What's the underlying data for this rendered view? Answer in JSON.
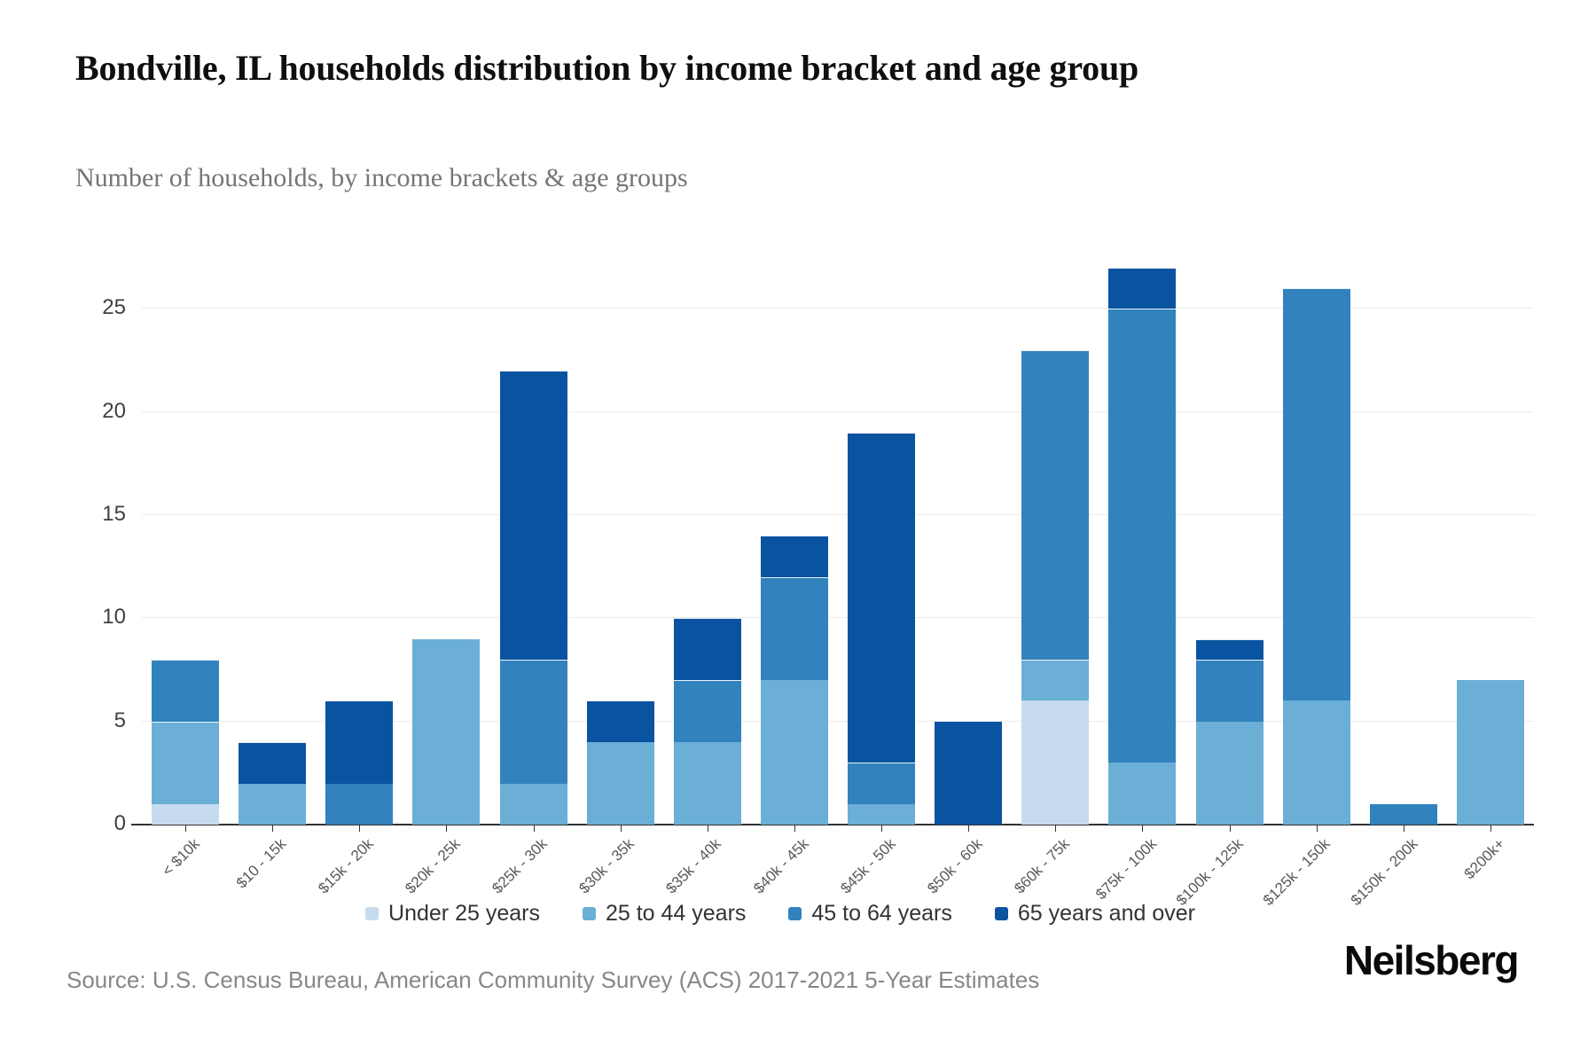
{
  "header": {
    "title": "Bondville, IL households distribution by income bracket and age group",
    "subtitle": "Number of households, by income brackets & age groups"
  },
  "chart_data": {
    "type": "bar",
    "stacked": true,
    "title": "Bondville, IL households distribution by income bracket and age group",
    "xlabel": "",
    "ylabel": "Number of households",
    "categories": [
      "< $10k",
      "$10 - 15k",
      "$15k - 20k",
      "$20k - 25k",
      "$25k - 30k",
      "$30k - 35k",
      "$35k - 40k",
      "$40k - 45k",
      "$45k - 50k",
      "$50k - 60k",
      "$60k - 75k",
      "$75k - 100k",
      "$100k - 125k",
      "$125k - 150k",
      "$150k - 200k",
      "$200k+"
    ],
    "series": [
      {
        "name": "Under 25 years",
        "color": "#c6dbef",
        "values": [
          1,
          0,
          0,
          0,
          0,
          0,
          0,
          0,
          0,
          0,
          6,
          0,
          0,
          0,
          0,
          0
        ]
      },
      {
        "name": "25 to 44 years",
        "color": "#6baed6",
        "values": [
          4,
          2,
          0,
          9,
          2,
          4,
          4,
          7,
          1,
          0,
          2,
          3,
          5,
          6,
          0,
          7
        ]
      },
      {
        "name": "45 to 64 years",
        "color": "#3182bd",
        "values": [
          3,
          0,
          2,
          0,
          6,
          0,
          3,
          5,
          2,
          0,
          15,
          22,
          3,
          20,
          1,
          0
        ]
      },
      {
        "name": "65 years and over",
        "color": "#0a53a0",
        "values": [
          0,
          2,
          4,
          0,
          14,
          2,
          3,
          2,
          16,
          5,
          0,
          2,
          1,
          0,
          0,
          0
        ]
      }
    ],
    "totals": [
      8,
      4,
      6,
      9,
      22,
      6,
      10,
      14,
      19,
      5,
      23,
      27,
      9,
      26,
      1,
      7
    ],
    "yticks": [
      0,
      5,
      10,
      15,
      20,
      25
    ],
    "ylim": [
      0,
      27.5
    ],
    "grid": true,
    "legend_position": "bottom",
    "axis_color": "#333333",
    "grid_color": "#ececec"
  },
  "footer": {
    "source": "Source: U.S. Census Bureau, American Community Survey (ACS) 2017-2021 5-Year Estimates",
    "brand": "Neilsberg"
  }
}
